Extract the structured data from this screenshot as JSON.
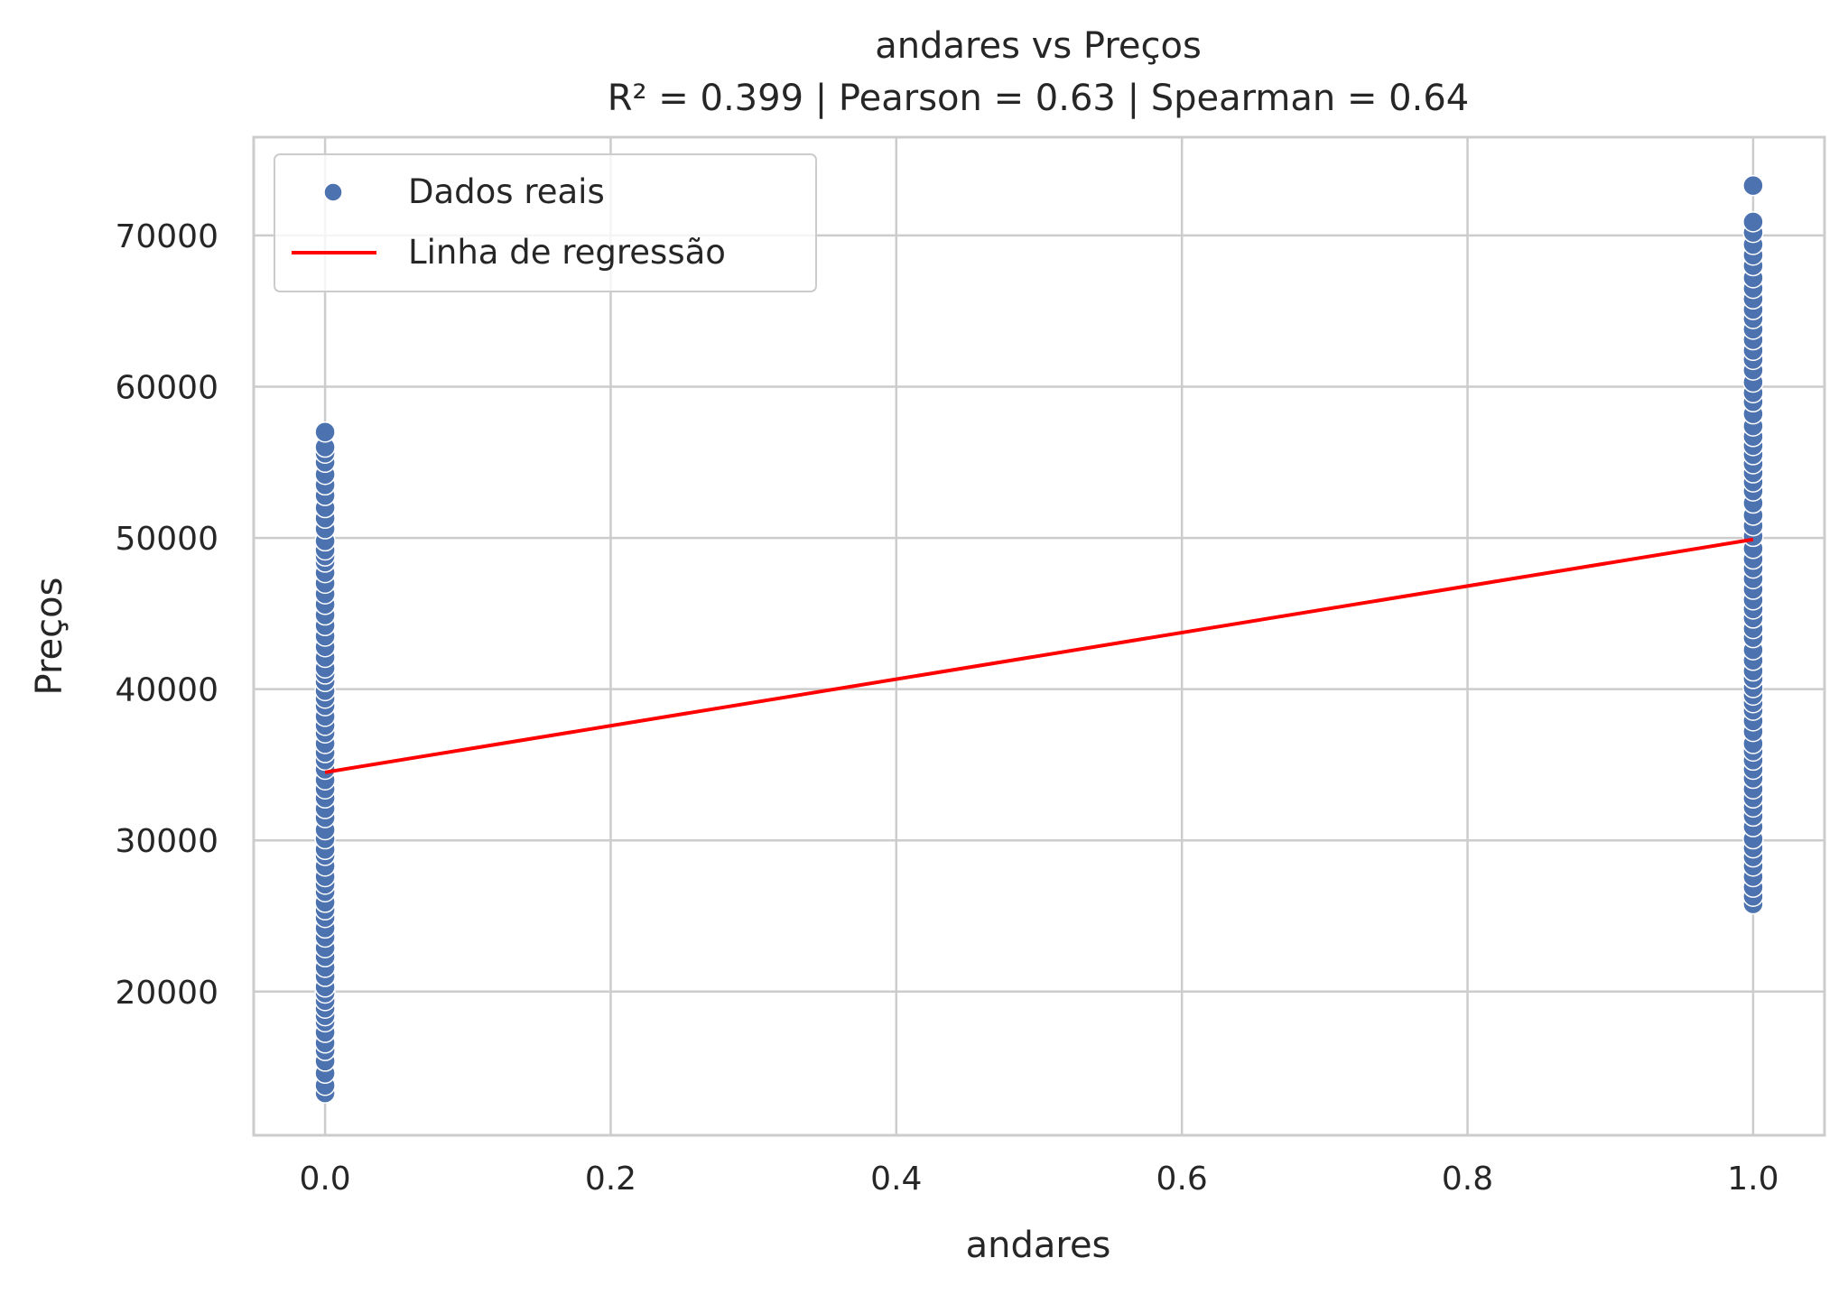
{
  "chart_data": {
    "type": "scatter",
    "title": "andares vs Preços",
    "subtitle": "R² = 0.399 | Pearson = 0.63 | Spearman = 0.64",
    "xlabel": "andares",
    "ylabel": "Preços",
    "xlim": [
      -0.05,
      1.05
    ],
    "ylim": [
      10500,
      76500
    ],
    "x_ticks": [
      0.0,
      0.2,
      0.4,
      0.6,
      0.8,
      1.0
    ],
    "x_tick_labels": [
      "0.0",
      "0.2",
      "0.4",
      "0.6",
      "0.8",
      "1.0"
    ],
    "y_ticks": [
      20000,
      30000,
      40000,
      50000,
      60000,
      70000
    ],
    "y_tick_labels": [
      "20000",
      "30000",
      "40000",
      "50000",
      "60000",
      "70000"
    ],
    "grid": true,
    "legend_position": "top-left",
    "series": [
      {
        "name": "Dados reais",
        "kind": "scatter",
        "color": "#4c72b0",
        "points": [
          [
            0,
            13300
          ],
          [
            0,
            13800
          ],
          [
            0,
            14600
          ],
          [
            0,
            15400
          ],
          [
            0,
            16100
          ],
          [
            0,
            16600
          ],
          [
            0,
            17300
          ],
          [
            0,
            18000
          ],
          [
            0,
            18400
          ],
          [
            0,
            18900
          ],
          [
            0,
            19400
          ],
          [
            0,
            19900
          ],
          [
            0,
            20300
          ],
          [
            0,
            21000
          ],
          [
            0,
            21600
          ],
          [
            0,
            22300
          ],
          [
            0,
            22900
          ],
          [
            0,
            23600
          ],
          [
            0,
            24200
          ],
          [
            0,
            24900
          ],
          [
            0,
            25400
          ],
          [
            0,
            25900
          ],
          [
            0,
            26600
          ],
          [
            0,
            27100
          ],
          [
            0,
            27600
          ],
          [
            0,
            28300
          ],
          [
            0,
            29000
          ],
          [
            0,
            29400
          ],
          [
            0,
            30100
          ],
          [
            0,
            30700
          ],
          [
            0,
            31500
          ],
          [
            0,
            32100
          ],
          [
            0,
            32800
          ],
          [
            0,
            33400
          ],
          [
            0,
            34000
          ],
          [
            0,
            34700
          ],
          [
            0,
            35300
          ],
          [
            0,
            35800
          ],
          [
            0,
            36400
          ],
          [
            0,
            37100
          ],
          [
            0,
            37600
          ],
          [
            0,
            38200
          ],
          [
            0,
            38900
          ],
          [
            0,
            39400
          ],
          [
            0,
            39900
          ],
          [
            0,
            40500
          ],
          [
            0,
            41000
          ],
          [
            0,
            41400
          ],
          [
            0,
            42100
          ],
          [
            0,
            42800
          ],
          [
            0,
            43500
          ],
          [
            0,
            44200
          ],
          [
            0,
            44900
          ],
          [
            0,
            45600
          ],
          [
            0,
            46300
          ],
          [
            0,
            47000
          ],
          [
            0,
            47700
          ],
          [
            0,
            48400
          ],
          [
            0,
            48800
          ],
          [
            0,
            49200
          ],
          [
            0,
            49800
          ],
          [
            0,
            50600
          ],
          [
            0,
            51300
          ],
          [
            0,
            52000
          ],
          [
            0,
            52800
          ],
          [
            0,
            53500
          ],
          [
            0,
            54200
          ],
          [
            0,
            55000
          ],
          [
            0,
            55600
          ],
          [
            0,
            56000
          ],
          [
            0,
            57000
          ],
          [
            1,
            25800
          ],
          [
            1,
            26300
          ],
          [
            1,
            26900
          ],
          [
            1,
            27600
          ],
          [
            1,
            28300
          ],
          [
            1,
            28900
          ],
          [
            1,
            29500
          ],
          [
            1,
            30100
          ],
          [
            1,
            30900
          ],
          [
            1,
            31600
          ],
          [
            1,
            32200
          ],
          [
            1,
            32800
          ],
          [
            1,
            33400
          ],
          [
            1,
            34100
          ],
          [
            1,
            34700
          ],
          [
            1,
            35300
          ],
          [
            1,
            35900
          ],
          [
            1,
            36400
          ],
          [
            1,
            37200
          ],
          [
            1,
            37900
          ],
          [
            1,
            38600
          ],
          [
            1,
            39100
          ],
          [
            1,
            39600
          ],
          [
            1,
            40100
          ],
          [
            1,
            40700
          ],
          [
            1,
            41200
          ],
          [
            1,
            41900
          ],
          [
            1,
            42600
          ],
          [
            1,
            43400
          ],
          [
            1,
            44000
          ],
          [
            1,
            44700
          ],
          [
            1,
            45300
          ],
          [
            1,
            45900
          ],
          [
            1,
            46600
          ],
          [
            1,
            47300
          ],
          [
            1,
            48000
          ],
          [
            1,
            48600
          ],
          [
            1,
            49300
          ],
          [
            1,
            50100
          ],
          [
            1,
            50800
          ],
          [
            1,
            51500
          ],
          [
            1,
            52300
          ],
          [
            1,
            53100
          ],
          [
            1,
            53700
          ],
          [
            1,
            54300
          ],
          [
            1,
            54900
          ],
          [
            1,
            55500
          ],
          [
            1,
            56100
          ],
          [
            1,
            56700
          ],
          [
            1,
            57400
          ],
          [
            1,
            58200
          ],
          [
            1,
            59000
          ],
          [
            1,
            59600
          ],
          [
            1,
            60300
          ],
          [
            1,
            61100
          ],
          [
            1,
            61800
          ],
          [
            1,
            62400
          ],
          [
            1,
            63100
          ],
          [
            1,
            63800
          ],
          [
            1,
            64500
          ],
          [
            1,
            65100
          ],
          [
            1,
            65800
          ],
          [
            1,
            66500
          ],
          [
            1,
            67200
          ],
          [
            1,
            68000
          ],
          [
            1,
            68700
          ],
          [
            1,
            69400
          ],
          [
            1,
            70200
          ],
          [
            1,
            70900
          ],
          [
            1,
            73300
          ]
        ]
      },
      {
        "name": "Linha de regressão",
        "kind": "line",
        "color": "#ff0000",
        "x": [
          0,
          1
        ],
        "y": [
          34500,
          49900
        ]
      }
    ]
  }
}
